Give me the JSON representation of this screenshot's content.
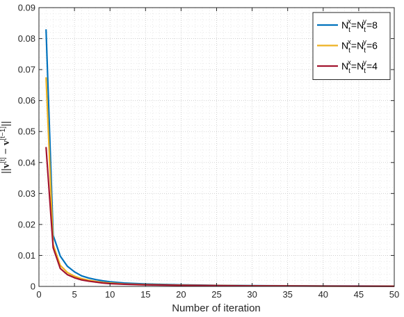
{
  "chart_data": {
    "type": "line",
    "title": "",
    "xlabel": "Number of iteration",
    "ylabel": "||v^[t] − v^[t−1]||",
    "xlim": [
      0,
      50
    ],
    "ylim": [
      0,
      0.09
    ],
    "xticks": [
      "0",
      "5",
      "10",
      "15",
      "20",
      "25",
      "30",
      "35",
      "40",
      "45",
      "50"
    ],
    "yticks": [
      "0",
      "0.01",
      "0.02",
      "0.03",
      "0.04",
      "0.05",
      "0.06",
      "0.07",
      "0.08",
      "0.09"
    ],
    "grid": true,
    "grid_minor": true,
    "legend_position": "top-right",
    "x": [
      1,
      2,
      3,
      4,
      5,
      6,
      7,
      8,
      9,
      10,
      12,
      15,
      20,
      25,
      30,
      35,
      40,
      45,
      50
    ],
    "series": [
      {
        "name_parts": [
          "N",
          "t",
          "x",
          "=N",
          "t",
          "y",
          "=8"
        ],
        "color": "#0072BD",
        "values": [
          0.083,
          0.0165,
          0.0098,
          0.0065,
          0.0047,
          0.0034,
          0.0027,
          0.0022,
          0.0018,
          0.0015,
          0.0011,
          0.0008,
          0.0005,
          0.00035,
          0.00025,
          0.0002,
          0.00015,
          0.00012,
          0.0001
        ]
      },
      {
        "name_parts": [
          "N",
          "t",
          "x",
          "=N",
          "t",
          "y",
          "=6"
        ],
        "color": "#EDB120",
        "values": [
          0.0675,
          0.0135,
          0.0068,
          0.0045,
          0.0033,
          0.0025,
          0.002,
          0.0016,
          0.0013,
          0.0011,
          0.0008,
          0.0006,
          0.0004,
          0.00028,
          0.0002,
          0.00016,
          0.00012,
          0.0001,
          8e-05
        ]
      },
      {
        "name_parts": [
          "N",
          "t",
          "x",
          "=N",
          "t",
          "y",
          "=4"
        ],
        "color": "#A2142F",
        "values": [
          0.045,
          0.0125,
          0.0058,
          0.0038,
          0.0028,
          0.0021,
          0.0017,
          0.0014,
          0.0011,
          0.0009,
          0.0007,
          0.0005,
          0.00035,
          0.00025,
          0.00018,
          0.00014,
          0.0001,
          8e-05,
          6e-05
        ]
      }
    ]
  }
}
